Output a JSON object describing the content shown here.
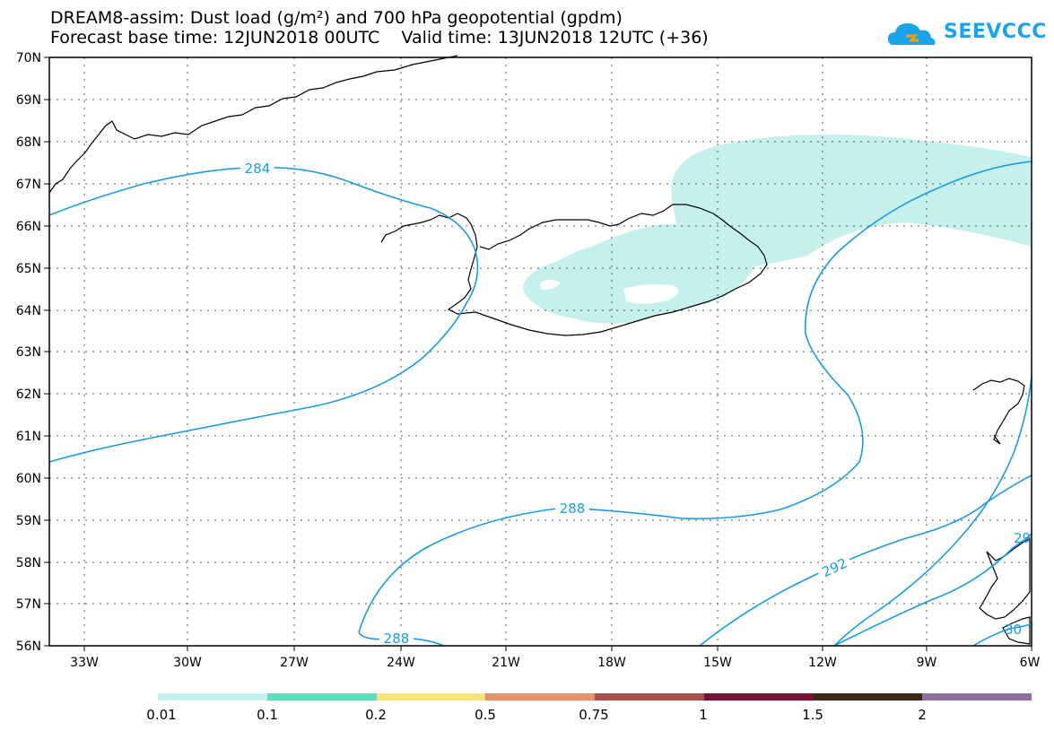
{
  "title_line1": "DREAM8-assim: Dust load (g/m²) and 700 hPa geopotential (gpdm)",
  "title_line2": "Forecast base time: 12JUN2018 00UTC    Valid time: 13JUN2018 12UTC (+36)",
  "logo_text": "SEEVCCC",
  "lat_labels": [
    "70N",
    "69N",
    "68N",
    "67N",
    "66N",
    "65N",
    "64N",
    "63N",
    "62N",
    "61N",
    "60N",
    "59N",
    "58N",
    "57N",
    "56N"
  ],
  "lon_labels": [
    "33W",
    "30W",
    "27W",
    "24W",
    "21W",
    "18W",
    "15W",
    "12W",
    "9W",
    "6W"
  ],
  "contour_labels": {
    "c284": "284",
    "c288a": "288",
    "c288b": "288",
    "c292": "292",
    "c29x": "29",
    "c30x": "30"
  },
  "legend": {
    "labels": [
      "0.01",
      "0.1",
      "0.2",
      "0.5",
      "0.75",
      "1",
      "1.5",
      "2"
    ],
    "colors": [
      "#c5f0ec",
      "#5edcbc",
      "#f4e47a",
      "#e8906c",
      "#a84f49",
      "#7c1136",
      "#3a2a18",
      "#8f6fa0"
    ]
  },
  "colors": {
    "contour": "#1a9be6",
    "dust_fill": "#c5f0ec",
    "coast": "#000000",
    "logo": "#1aa3e8"
  }
}
